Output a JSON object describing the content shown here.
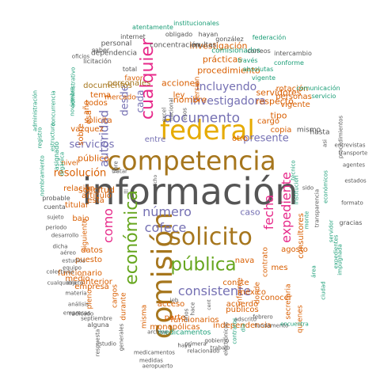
{
  "palette": {
    "gray": "#555555",
    "orange": "#D95F02",
    "gold": "#E6AB02",
    "green": "#66A61E",
    "purple": "#7570B3",
    "pink": "#E7298A",
    "teal": "#1B9E77",
    "brown": "#A6761D"
  },
  "words": [
    {
      "text": "información"
    },
    {
      "text": "comisión"
    },
    {
      "text": "competencia"
    },
    {
      "text": "federal"
    },
    {
      "text": "solicito"
    },
    {
      "text": "cualquier"
    },
    {
      "text": "pública"
    },
    {
      "text": "económica"
    },
    {
      "text": "fecha"
    },
    {
      "text": "expediente"
    },
    {
      "text": "como"
    },
    {
      "text": "documento"
    },
    {
      "text": "número"
    },
    {
      "text": "investigadora"
    },
    {
      "text": "incluyendo"
    },
    {
      "text": "consistente"
    },
    {
      "text": "cofece"
    },
    {
      "text": "autoridad"
    },
    {
      "text": "servicios"
    },
    {
      "text": "presente"
    },
    {
      "text": "resolución"
    },
    {
      "text": "desde"
    },
    {
      "text": "cada"
    },
    {
      "text": "caso"
    },
    {
      "text": "solicitud"
    },
    {
      "text": "público"
    },
    {
      "text": "nombre"
    },
    {
      "text": "acciones"
    },
    {
      "text": "procedimiento"
    },
    {
      "text": "prácticas"
    },
    {
      "text": "investigación"
    },
    {
      "text": "servidores"
    },
    {
      "text": "respecto"
    },
    {
      "text": "tipo"
    },
    {
      "text": "entre"
    },
    {
      "text": "copia"
    },
    {
      "text": "otro"
    },
    {
      "text": "cargo"
    },
    {
      "text": "vazquez"
    },
    {
      "text": "artículo"
    },
    {
      "text": "datos"
    },
    {
      "text": "empresa"
    },
    {
      "text": "funcionario"
    },
    {
      "text": "medio"
    },
    {
      "text": "acceso"
    },
    {
      "text": "parte"
    },
    {
      "text": "funcionarios"
    },
    {
      "text": "públicos"
    },
    {
      "text": "independencia"
    },
    {
      "text": "acuerdo"
    },
    {
      "text": "conste"
    },
    {
      "text": "méxico"
    },
    {
      "text": "nava"
    },
    {
      "text": "informe"
    },
    {
      "text": "donde"
    },
    {
      "text": "agosto"
    },
    {
      "text": "consultores"
    },
    {
      "text": "conocer"
    },
    {
      "text": "mes"
    },
    {
      "text": "contrato"
    },
    {
      "text": "secretaria"
    },
    {
      "text": "quienes"
    },
    {
      "text": "año"
    },
    {
      "text": "esa"
    },
    {
      "text": "todos"
    },
    {
      "text": "tema"
    },
    {
      "text": "solicita"
    },
    {
      "text": "esta"
    },
    {
      "text": "relación"
    },
    {
      "text": "titular"
    },
    {
      "text": "bajo"
    },
    {
      "text": "sobre"
    },
    {
      "text": "nivel"
    },
    {
      "text": "siguiente"
    },
    {
      "text": "anterior"
    },
    {
      "text": "puesto"
    },
    {
      "text": "pleno"
    },
    {
      "text": "cargos"
    },
    {
      "text": "durante"
    },
    {
      "text": "misma"
    },
    {
      "text": "monopólicas"
    },
    {
      "text": "documentos"
    },
    {
      "text": "personales"
    },
    {
      "text": "mercado"
    },
    {
      "text": "favor"
    },
    {
      "text": "ley"
    },
    {
      "text": "versión"
    },
    {
      "text": "vigente"
    },
    {
      "text": "personas"
    },
    {
      "text": "rotación"
    },
    {
      "text": "mismo"
    },
    {
      "text": "hasta"
    },
    {
      "text": "comisionados"
    },
    {
      "text": "medicamentos"
    },
    {
      "text": "concentración"
    },
    {
      "text": "multas"
    },
    {
      "text": "obligado"
    },
    {
      "text": "hayan"
    },
    {
      "text": "internet"
    },
    {
      "text": "personal"
    },
    {
      "text": "dependencia"
    },
    {
      "text": "licitación"
    },
    {
      "text": "saber"
    },
    {
      "text": "total"
    },
    {
      "text": "vigente"
    },
    {
      "text": "absolutas"
    },
    {
      "text": "través"
    },
    {
      "text": "correos"
    },
    {
      "text": "intercambio"
    },
    {
      "text": "institucionales"
    },
    {
      "text": "atentamente"
    },
    {
      "text": "gonzález"
    },
    {
      "text": "federación"
    },
    {
      "text": "conforme"
    },
    {
      "text": "comunicación"
    },
    {
      "text": "servicio"
    },
    {
      "text": "oficios"
    },
    {
      "text": "administrativo"
    },
    {
      "text": "noviembre"
    },
    {
      "text": "estructura"
    },
    {
      "text": "concurrencia"
    },
    {
      "text": "asignado"
    },
    {
      "text": "orgánica"
    },
    {
      "text": "nombramiento"
    },
    {
      "text": "registro"
    },
    {
      "text": "administración"
    },
    {
      "text": "probable"
    },
    {
      "text": "cuenta"
    },
    {
      "text": "sujeto"
    },
    {
      "text": "periodo"
    },
    {
      "text": "colectivas"
    },
    {
      "text": "cualquiera"
    },
    {
      "text": "equipo"
    },
    {
      "text": "objeto"
    },
    {
      "text": "materia"
    },
    {
      "text": "análisis"
    },
    {
      "text": "empresas"
    },
    {
      "text": "radicado"
    },
    {
      "text": "septiembre"
    },
    {
      "text": "alguna"
    },
    {
      "text": "respuesta"
    },
    {
      "text": "estudio"
    },
    {
      "text": "generales"
    },
    {
      "text": "medicamentos"
    },
    {
      "text": "medidas"
    },
    {
      "text": "aeropuerto"
    },
    {
      "text": "relacionado"
    },
    {
      "text": "trabajo"
    },
    {
      "text": "haya"
    },
    {
      "text": "gobierno"
    },
    {
      "text": "primera"
    },
    {
      "text": "electrónicos"
    },
    {
      "text": "contratos"
    },
    {
      "text": "día"
    },
    {
      "text": "adscrito"
    },
    {
      "text": "febrero"
    },
    {
      "text": "fundamento"
    },
    {
      "text": "encuentra"
    },
    {
      "text": "expedientes"
    },
    {
      "text": "impugnada"
    },
    {
      "text": "ciudad"
    },
    {
      "text": "área"
    },
    {
      "text": "gracias"
    },
    {
      "text": "formato"
    },
    {
      "text": "estados"
    },
    {
      "text": "agentes"
    },
    {
      "text": "entrevistas"
    },
    {
      "text": "transporte"
    },
    {
      "text": "procedimientos"
    },
    {
      "text": "económicos"
    },
    {
      "text": "transparencia"
    },
    {
      "text": "monte"
    },
    {
      "text": "servidor"
    },
    {
      "text": "técnico"
    },
    {
      "text": "institución"
    },
    {
      "text": "asi"
    },
    {
      "text": "sido"
    },
    {
      "text": "dicha"
    },
    {
      "text": "desarrollo"
    },
    {
      "text": "aéreo"
    },
    {
      "text": "estudios"
    },
    {
      "text": "iii"
    },
    {
      "text": "tratar"
    },
    {
      "text": "libre"
    },
    {
      "text": "dicho"
    },
    {
      "text": "nacional"
    },
    {
      "text": "excel"
    },
    {
      "text": "esos"
    },
    {
      "text": "ieb"
    },
    {
      "text": "hace"
    },
    {
      "text": "años"
    },
    {
      "text": "archivo"
    },
    {
      "text": "cent"
    }
  ]
}
